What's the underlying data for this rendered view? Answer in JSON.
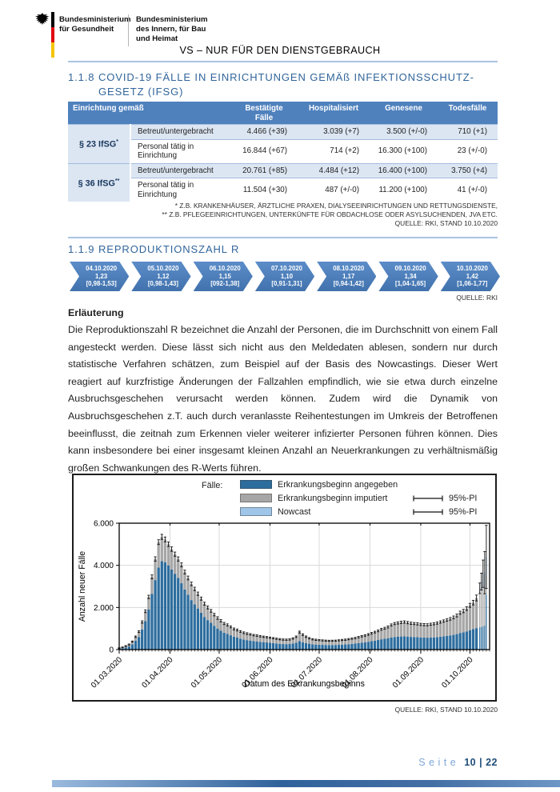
{
  "header": {
    "ministry1": {
      "line1": "Bundesministerium",
      "line2": "für Gesundheit"
    },
    "ministry2": {
      "line1": "Bundesministerium",
      "line2": "des Innern, für Bau",
      "line3": "und Heimat"
    },
    "classification": "VS – NUR FÜR DEN DIENSTGEBRAUCH"
  },
  "section_118": {
    "number": "1.1.8",
    "title_line1": "COVID-19 FÄLLE IN EINRICHTUNGEN GEMÄß INFEKTIONSSCHUTZ-",
    "title_line2": "GESETZ (IFSG)"
  },
  "table": {
    "headers": [
      "Einrichtung gemäß",
      "Bestätigte Fälle",
      "Hospitalisiert",
      "Genesene",
      "Todesfälle"
    ],
    "groups": [
      {
        "label": "§ 23 IfSG",
        "sup": "*",
        "rows": [
          {
            "desc": "Betreut/untergebracht",
            "values": [
              "4.466 (+39)",
              "3.039 (+7)",
              "3.500 (+/-0)",
              "710 (+1)"
            ]
          },
          {
            "desc": "Personal tätig in Einrichtung",
            "values": [
              "16.844 (+67)",
              "714 (+2)",
              "16.300 (+100)",
              "23 (+/-0)"
            ]
          }
        ]
      },
      {
        "label": "§ 36 IfSG",
        "sup": "**",
        "rows": [
          {
            "desc": "Betreut/untergebracht",
            "values": [
              "20.761 (+85)",
              "4.484 (+12)",
              "16.400 (+100)",
              "3.750 (+4)"
            ]
          },
          {
            "desc": "Personal tätig in Einrichtung",
            "values": [
              "11.504 (+30)",
              "487 (+/-0)",
              "11.200 (+100)",
              "41 (+/-0)"
            ]
          }
        ]
      }
    ]
  },
  "footnotes": [
    "* Z.B. KRANKENHÄUSER, ÄRZTLICHE PRAXEN, DIALYSEEINRICHTUNGEN UND RETTUNGSDIENSTE,",
    "** Z.B. PFLEGEEINRICHTUNGEN, UNTERKÜNFTE FÜR OBDACHLOSE ODER ASYLSUCHENDEN, JVA ETC.",
    "QUELLE: RKI, STAND 10.10.2020"
  ],
  "section_119": {
    "number": "1.1.9",
    "title": "REPRODUKTIONSZAHL R"
  },
  "r_values": [
    {
      "date": "04.10.2020",
      "r": "1,23",
      "ci": "[0,98-1,53]"
    },
    {
      "date": "05.10.2020",
      "r": "1,12",
      "ci": "[0,98-1,43]"
    },
    {
      "date": "06.10.2020",
      "r": "1,15",
      "ci": "[092-1,38]"
    },
    {
      "date": "07.10.2020",
      "r": "1,10",
      "ci": "[0,91-1,31]"
    },
    {
      "date": "08.10.2020",
      "r": "1,17",
      "ci": "[0,94-1,42]"
    },
    {
      "date": "09.10.2020",
      "r": "1,34",
      "ci": "[1,04-1,65]"
    },
    {
      "date": "10.10.2020",
      "r": "1,42",
      "ci": "[1,06-1,77]"
    }
  ],
  "source_r": "QUELLE: RKI",
  "explanation": {
    "title": "Erläuterung",
    "text": "Die Reproduktionszahl R bezeichnet die Anzahl der Personen, die im Durchschnitt von einem Fall angesteckt werden. Diese lässt sich nicht aus den Meldedaten ablesen, sondern nur durch statistische Verfahren schätzen, zum Beispiel auf der Basis des Nowcastings. Dieser Wert reagiert auf kurzfristige Änderungen der Fallzahlen empfindlich, wie sie etwa durch einzelne Ausbruchsgeschehen verursacht werden können. Zudem wird die Dynamik von Ausbruchsgeschehen z.T. auch durch veranlasste Reihentestungen im Umkreis der Betroffenen beeinflusst, die zeitnah zum Erkennen vieler weiterer infizierter Personen führen können. Dies kann insbesondere bei einer insgesamt kleinen Anzahl an Neuerkrankungen zu verhältnismäßig großen Schwankungen des R-Werts führen."
  },
  "chart_data": {
    "type": "bar",
    "stacked": true,
    "xlabel": "Datum des Erkrankungsbeginns",
    "ylabel": "Anzahl neuer Fälle",
    "ylim": [
      0,
      6000
    ],
    "y_ticks": [
      {
        "v": 0,
        "label": "0"
      },
      {
        "v": 2000,
        "label": "2.000"
      },
      {
        "v": 4000,
        "label": "4.000"
      },
      {
        "v": 6000,
        "label": "6.000"
      }
    ],
    "x_domain": [
      0,
      226
    ],
    "x_ticks": [
      {
        "day": 0,
        "label": "01.03.2020"
      },
      {
        "day": 31,
        "label": "01.04.2020"
      },
      {
        "day": 61,
        "label": "01.05.2020"
      },
      {
        "day": 92,
        "label": "01.06.2020"
      },
      {
        "day": 122,
        "label": "01.07.2020"
      },
      {
        "day": 153,
        "label": "01.08.2020"
      },
      {
        "day": 184,
        "label": "01.09.2020"
      },
      {
        "day": 214,
        "label": "01.10.2020"
      }
    ],
    "legend": {
      "title": "Fälle:",
      "entries": [
        {
          "label": "Erkrankungsbeginn angegeben",
          "color": "#2d6d9e"
        },
        {
          "label": "Erkrankungsbeginn imputiert",
          "color": "#a6a6a6"
        },
        {
          "label": "Nowcast",
          "color": "#9fc5e8"
        }
      ],
      "pi_label": "95%-PI"
    },
    "series_order": [
      "angegeben",
      "imputiert",
      "nowcast"
    ],
    "points": [
      [
        0,
        40,
        30,
        0,
        15
      ],
      [
        2,
        65,
        42,
        0,
        18
      ],
      [
        4,
        105,
        62,
        0,
        22
      ],
      [
        6,
        150,
        90,
        0,
        25
      ],
      [
        8,
        250,
        130,
        0,
        28
      ],
      [
        10,
        420,
        190,
        0,
        35
      ],
      [
        12,
        600,
        250,
        0,
        40
      ],
      [
        14,
        950,
        360,
        0,
        55
      ],
      [
        16,
        1350,
        470,
        0,
        65
      ],
      [
        18,
        1900,
        600,
        0,
        80
      ],
      [
        20,
        2650,
        800,
        0,
        95
      ],
      [
        22,
        3300,
        1000,
        0,
        105
      ],
      [
        24,
        3900,
        1200,
        0,
        115
      ],
      [
        26,
        4200,
        1150,
        0,
        120
      ],
      [
        28,
        4150,
        1080,
        0,
        115
      ],
      [
        30,
        4000,
        1000,
        0,
        110
      ],
      [
        32,
        3800,
        970,
        0,
        105
      ],
      [
        34,
        3600,
        930,
        0,
        100
      ],
      [
        36,
        3400,
        900,
        0,
        100
      ],
      [
        38,
        3150,
        870,
        0,
        95
      ],
      [
        40,
        2850,
        830,
        0,
        90
      ],
      [
        42,
        2600,
        800,
        0,
        90
      ],
      [
        44,
        2350,
        770,
        0,
        85
      ],
      [
        46,
        2150,
        730,
        0,
        80
      ],
      [
        48,
        1950,
        700,
        0,
        80
      ],
      [
        50,
        1750,
        670,
        0,
        75
      ],
      [
        52,
        1550,
        630,
        0,
        70
      ],
      [
        54,
        1400,
        600,
        0,
        70
      ],
      [
        56,
        1270,
        570,
        0,
        65
      ],
      [
        58,
        1130,
        530,
        0,
        60
      ],
      [
        60,
        1000,
        500,
        0,
        60
      ],
      [
        62,
        900,
        470,
        0,
        55
      ],
      [
        64,
        800,
        440,
        0,
        50
      ],
      [
        66,
        750,
        420,
        0,
        50
      ],
      [
        68,
        680,
        400,
        0,
        45
      ],
      [
        70,
        610,
        370,
        0,
        45
      ],
      [
        72,
        570,
        360,
        0,
        45
      ],
      [
        74,
        520,
        340,
        0,
        40
      ],
      [
        76,
        480,
        320,
        0,
        40
      ],
      [
        78,
        450,
        310,
        0,
        40
      ],
      [
        80,
        430,
        295,
        0,
        35
      ],
      [
        82,
        405,
        282,
        0,
        35
      ],
      [
        84,
        390,
        275,
        0,
        35
      ],
      [
        86,
        370,
        265,
        0,
        35
      ],
      [
        88,
        355,
        255,
        0,
        32
      ],
      [
        90,
        340,
        250,
        0,
        30
      ],
      [
        92,
        325,
        240,
        0,
        30
      ],
      [
        94,
        310,
        232,
        0,
        30
      ],
      [
        96,
        290,
        225,
        0,
        30
      ],
      [
        98,
        275,
        218,
        0,
        30
      ],
      [
        100,
        263,
        212,
        0,
        30
      ],
      [
        102,
        260,
        210,
        0,
        30
      ],
      [
        104,
        265,
        215,
        0,
        30
      ],
      [
        106,
        290,
        240,
        0,
        32
      ],
      [
        108,
        330,
        280,
        0,
        35
      ],
      [
        110,
        400,
        430,
        0,
        45
      ],
      [
        112,
        350,
        360,
        0,
        40
      ],
      [
        114,
        310,
        300,
        0,
        35
      ],
      [
        116,
        280,
        260,
        0,
        32
      ],
      [
        118,
        255,
        235,
        0,
        30
      ],
      [
        120,
        240,
        225,
        0,
        30
      ],
      [
        122,
        232,
        218,
        0,
        28
      ],
      [
        124,
        225,
        210,
        0,
        27
      ],
      [
        126,
        220,
        205,
        0,
        26
      ],
      [
        128,
        216,
        202,
        0,
        26
      ],
      [
        130,
        218,
        203,
        0,
        26
      ],
      [
        132,
        220,
        205,
        0,
        26
      ],
      [
        134,
        227,
        212,
        0,
        27
      ],
      [
        136,
        237,
        220,
        0,
        28
      ],
      [
        138,
        245,
        225,
        0,
        30
      ],
      [
        140,
        255,
        240,
        0,
        30
      ],
      [
        142,
        268,
        252,
        0,
        30
      ],
      [
        144,
        285,
        265,
        0,
        30
      ],
      [
        146,
        305,
        285,
        0,
        33
      ],
      [
        148,
        325,
        308,
        0,
        34
      ],
      [
        150,
        345,
        325,
        0,
        35
      ],
      [
        152,
        370,
        350,
        0,
        38
      ],
      [
        154,
        398,
        378,
        0,
        40
      ],
      [
        156,
        425,
        405,
        0,
        40
      ],
      [
        158,
        455,
        435,
        0,
        43
      ],
      [
        160,
        490,
        475,
        0,
        44
      ],
      [
        162,
        515,
        500,
        0,
        45
      ],
      [
        164,
        540,
        535,
        0,
        48
      ],
      [
        166,
        570,
        600,
        0,
        49
      ],
      [
        168,
        595,
        640,
        0,
        50
      ],
      [
        170,
        608,
        657,
        0,
        52
      ],
      [
        172,
        622,
        672,
        0,
        54
      ],
      [
        174,
        630,
        680,
        0,
        55
      ],
      [
        176,
        618,
        663,
        0,
        55
      ],
      [
        178,
        603,
        648,
        0,
        52
      ],
      [
        180,
        595,
        640,
        0,
        50
      ],
      [
        182,
        588,
        633,
        0,
        50
      ],
      [
        184,
        575,
        620,
        0,
        50
      ],
      [
        186,
        570,
        615,
        0,
        50
      ],
      [
        188,
        566,
        612,
        0,
        50
      ],
      [
        190,
        573,
        630,
        0,
        50
      ],
      [
        192,
        580,
        645,
        0,
        50
      ],
      [
        194,
        593,
        668,
        0,
        52
      ],
      [
        196,
        610,
        700,
        0,
        54
      ],
      [
        198,
        630,
        725,
        0,
        55
      ],
      [
        200,
        650,
        755,
        0,
        58
      ],
      [
        202,
        670,
        790,
        0,
        62
      ],
      [
        204,
        700,
        830,
        0,
        65
      ],
      [
        206,
        736,
        882,
        0,
        68
      ],
      [
        208,
        790,
        960,
        0,
        75
      ],
      [
        210,
        820,
        1010,
        0,
        80
      ],
      [
        212,
        865,
        1080,
        0,
        85
      ],
      [
        214,
        920,
        1180,
        0,
        95
      ],
      [
        216,
        970,
        1260,
        0,
        110
      ],
      [
        218,
        1020,
        1430,
        0,
        140
      ],
      [
        220,
        1060,
        1700,
        150,
        250
      ],
      [
        221,
        1080,
        1850,
        300,
        400
      ],
      [
        222,
        1100,
        2000,
        500,
        650
      ],
      [
        223,
        1150,
        1700,
        800,
        1000
      ],
      [
        224,
        2600,
        900,
        900,
        1500
      ]
    ]
  },
  "source_chart": "QUELLE: RKI, STAND 10.10.2020",
  "footer": {
    "label": "Seite",
    "page": "10 | 22"
  }
}
